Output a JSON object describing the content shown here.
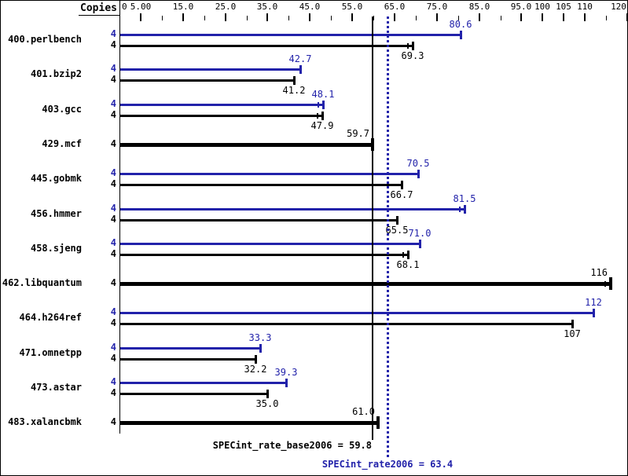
{
  "colors": {
    "peak_blue": "#2222aa",
    "base_black": "#000000",
    "background": "#ffffff"
  },
  "header": {
    "copies_label": "Copies"
  },
  "axis": {
    "min": 0,
    "max": 120,
    "zero_label": "0",
    "major_ticks": [
      {
        "value": 5,
        "label": "5.00"
      },
      {
        "value": 15,
        "label": "15.0"
      },
      {
        "value": 25,
        "label": "25.0"
      },
      {
        "value": 35,
        "label": "35.0"
      },
      {
        "value": 45,
        "label": "45.0"
      },
      {
        "value": 55,
        "label": "55.0"
      },
      {
        "value": 65,
        "label": "65.0"
      },
      {
        "value": 75,
        "label": "75.0"
      },
      {
        "value": 85,
        "label": "85.0"
      },
      {
        "value": 95,
        "label": "95.0"
      },
      {
        "value": 100,
        "label": "100"
      },
      {
        "value": 105,
        "label": "105"
      },
      {
        "value": 110,
        "label": "110"
      },
      {
        "value": 120,
        "label": "120"
      }
    ],
    "minor_ticks": [
      10,
      20,
      30,
      40,
      50,
      60,
      70,
      80,
      90,
      115
    ]
  },
  "benchmarks": [
    {
      "name": "400.perlbench",
      "copies": 4,
      "peak": {
        "value": 80.6,
        "label": "80.6"
      },
      "base": {
        "value": 69.3,
        "label": "69.3",
        "tick2": true
      }
    },
    {
      "name": "401.bzip2",
      "copies": 4,
      "peak": {
        "value": 42.7,
        "label": "42.7"
      },
      "base": {
        "value": 41.2,
        "label": "41.2"
      }
    },
    {
      "name": "403.gcc",
      "copies": 4,
      "peak": {
        "value": 48.1,
        "label": "48.1",
        "tick2": true
      },
      "base": {
        "value": 47.9,
        "label": "47.9",
        "tick2": true
      }
    },
    {
      "name": "429.mcf",
      "copies": 4,
      "single": {
        "value": 59.7,
        "label": "59.7"
      }
    },
    {
      "name": "445.gobmk",
      "copies": 4,
      "peak": {
        "value": 70.5,
        "label": "70.5"
      },
      "base": {
        "value": 66.7,
        "label": "66.7"
      }
    },
    {
      "name": "456.hmmer",
      "copies": 4,
      "peak": {
        "value": 81.5,
        "label": "81.5",
        "tick2": true
      },
      "base": {
        "value": 65.5,
        "label": "65.5"
      }
    },
    {
      "name": "458.sjeng",
      "copies": 4,
      "peak": {
        "value": 71.0,
        "label": "71.0"
      },
      "base": {
        "value": 68.1,
        "label": "68.1",
        "tick2": true
      }
    },
    {
      "name": "462.libquantum",
      "copies": 4,
      "single": {
        "value": 116,
        "label": "116",
        "tick2": true
      }
    },
    {
      "name": "464.h264ref",
      "copies": 4,
      "peak": {
        "value": 112,
        "label": "112"
      },
      "base": {
        "value": 107,
        "label": "107"
      }
    },
    {
      "name": "471.omnetpp",
      "copies": 4,
      "peak": {
        "value": 33.3,
        "label": "33.3"
      },
      "base": {
        "value": 32.2,
        "label": "32.2"
      }
    },
    {
      "name": "473.astar",
      "copies": 4,
      "peak": {
        "value": 39.3,
        "label": "39.3"
      },
      "base": {
        "value": 35.0,
        "label": "35.0"
      }
    },
    {
      "name": "483.xalancbmk",
      "copies": 4,
      "single": {
        "value": 61.0,
        "label": "61.0"
      }
    }
  ],
  "summary": {
    "base_text": "SPECint_rate_base2006 = 59.8",
    "base_value": 59.8,
    "peak_text": "SPECint_rate2006 = 63.4",
    "peak_value": 63.4
  },
  "chart_data": {
    "type": "bar",
    "orientation": "horizontal",
    "title": "",
    "xlabel": "",
    "ylabel": "Copies",
    "xlim": [
      0,
      120
    ],
    "grid": false,
    "legend_position": "none",
    "categories": [
      "400.perlbench",
      "401.bzip2",
      "403.gcc",
      "429.mcf",
      "445.gobmk",
      "456.hmmer",
      "458.sjeng",
      "462.libquantum",
      "464.h264ref",
      "471.omnetpp",
      "473.astar",
      "483.xalancbmk"
    ],
    "copies": [
      4,
      4,
      4,
      4,
      4,
      4,
      4,
      4,
      4,
      4,
      4,
      4
    ],
    "series": [
      {
        "name": "SPECint_rate2006 (peak)",
        "color": "#2222aa",
        "values": [
          80.6,
          42.7,
          48.1,
          59.7,
          70.5,
          81.5,
          71.0,
          116,
          112,
          33.3,
          39.3,
          61.0
        ]
      },
      {
        "name": "SPECint_rate_base2006 (base)",
        "color": "#000000",
        "values": [
          69.3,
          41.2,
          47.9,
          59.7,
          66.7,
          65.5,
          68.1,
          116,
          107,
          32.2,
          35.0,
          61.0
        ]
      }
    ],
    "single_bar_rows": [
      "429.mcf",
      "462.libquantum",
      "483.xalancbmk"
    ],
    "reference_lines": [
      {
        "label": "SPECint_rate_base2006",
        "value": 59.8,
        "style": "solid",
        "color": "#000000"
      },
      {
        "label": "SPECint_rate2006",
        "value": 63.4,
        "style": "dotted",
        "color": "#2222aa"
      }
    ],
    "x_major_ticks": [
      5,
      15,
      25,
      35,
      45,
      55,
      65,
      75,
      85,
      95,
      100,
      105,
      110,
      120
    ],
    "x_minor_ticks": [
      10,
      20,
      30,
      40,
      50,
      60,
      70,
      80,
      90,
      115
    ]
  }
}
